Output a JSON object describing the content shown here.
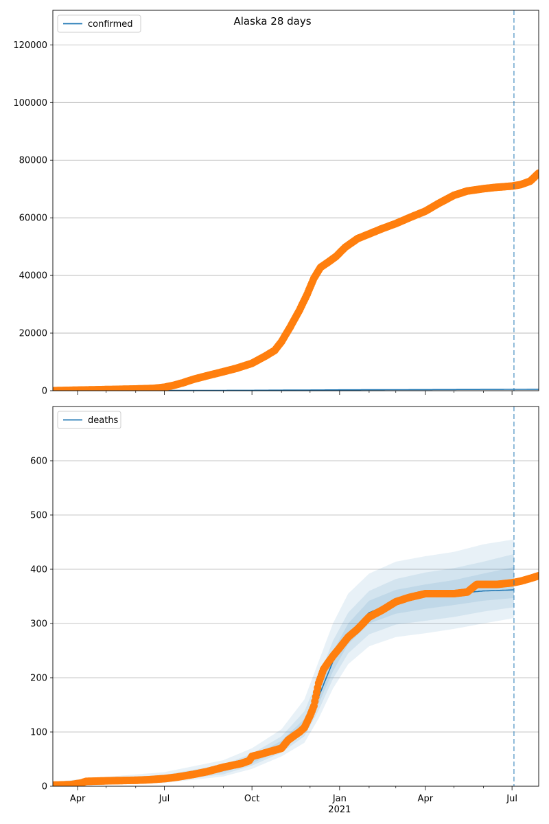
{
  "figure_title": "Alaska 28 days",
  "colors": {
    "model": "#1f77b4",
    "observed": "#ff7f0e",
    "band": "#1f77b4",
    "grid": "#b0b0b0",
    "forecast_line": "#1f77b4"
  },
  "x_axis": {
    "major_ticks": [
      {
        "date": "2020-04-01",
        "label": "Apr"
      },
      {
        "date": "2020-07-01",
        "label": "Jul"
      },
      {
        "date": "2020-10-01",
        "label": "Oct"
      },
      {
        "date": "2021-01-01",
        "label": "Jan"
      },
      {
        "date": "2021-04-01",
        "label": "Apr"
      },
      {
        "date": "2021-07-01",
        "label": "Jul"
      }
    ],
    "year_label": {
      "date": "2021-01-01",
      "label": "2021"
    },
    "minor_tick_dates": [
      "2020-05-01",
      "2020-06-01",
      "2020-08-01",
      "2020-09-01",
      "2020-11-01",
      "2020-12-01",
      "2021-02-01",
      "2021-03-01",
      "2021-05-01",
      "2021-06-01"
    ],
    "range": [
      "2020-03-06",
      "2021-07-29"
    ]
  },
  "forecast_date": "2021-07-03",
  "chart_data": [
    {
      "type": "line",
      "legend": "confirmed",
      "legend_position": "top-left",
      "ylim": [
        0,
        132000
      ],
      "yticks": [
        0,
        20000,
        40000,
        60000,
        80000,
        100000,
        120000
      ],
      "grid": "y",
      "model_series": {
        "name": "confirmed",
        "x": [
          "2020-03-06",
          "2020-10-01",
          "2021-01-01",
          "2021-07-29"
        ],
        "y": [
          0,
          150,
          300,
          500
        ]
      },
      "observed_series": {
        "x": [
          "2020-03-06",
          "2020-04-01",
          "2020-05-01",
          "2020-06-01",
          "2020-06-20",
          "2020-07-01",
          "2020-07-10",
          "2020-07-20",
          "2020-08-01",
          "2020-08-15",
          "2020-09-01",
          "2020-09-15",
          "2020-10-01",
          "2020-10-15",
          "2020-10-25",
          "2020-11-01",
          "2020-11-10",
          "2020-11-20",
          "2020-11-28",
          "2020-12-05",
          "2020-12-12",
          "2020-12-20",
          "2020-12-28",
          "2021-01-07",
          "2021-01-20",
          "2021-02-01",
          "2021-02-15",
          "2021-03-01",
          "2021-03-15",
          "2021-04-01",
          "2021-04-15",
          "2021-05-01",
          "2021-05-15",
          "2021-06-01",
          "2021-06-15",
          "2021-07-01",
          "2021-07-10",
          "2021-07-20",
          "2021-07-29"
        ],
        "y": [
          0,
          200,
          400,
          600,
          800,
          1200,
          1800,
          2700,
          4000,
          5200,
          6600,
          7800,
          9500,
          12000,
          14000,
          17000,
          22000,
          28000,
          33500,
          39000,
          42800,
          44600,
          46500,
          49800,
          52800,
          54400,
          56300,
          58000,
          60000,
          62300,
          65000,
          67800,
          69300,
          70100,
          70600,
          71000,
          71500,
          72700,
          75500
        ]
      }
    },
    {
      "type": "line",
      "legend": "deaths",
      "legend_position": "top-left",
      "ylim": [
        0,
        700
      ],
      "yticks": [
        0,
        100,
        200,
        300,
        400,
        500,
        600
      ],
      "grid": "y",
      "model_series": {
        "name": "deaths",
        "x": [
          "2020-03-06",
          "2020-04-15",
          "2020-07-01",
          "2020-09-01",
          "2020-10-01",
          "2020-11-01",
          "2020-11-25",
          "2020-12-10",
          "2020-12-25",
          "2021-01-10",
          "2021-02-01",
          "2021-03-01",
          "2021-04-01",
          "2021-05-01",
          "2021-06-01",
          "2021-07-03"
        ],
        "y": [
          3,
          8,
          14,
          30,
          48,
          75,
          110,
          165,
          230,
          280,
          320,
          340,
          350,
          355,
          360,
          362
        ]
      },
      "bands": [
        {
          "x": [
            "2020-03-06",
            "2020-04-15",
            "2020-07-01",
            "2020-09-01",
            "2020-10-01",
            "2020-11-01",
            "2020-11-25",
            "2020-12-10",
            "2020-12-25",
            "2021-01-10",
            "2021-02-01",
            "2021-03-01",
            "2021-04-01",
            "2021-05-01",
            "2021-06-01",
            "2021-07-03"
          ],
          "lower": [
            0,
            2,
            6,
            18,
            32,
            55,
            80,
            125,
            180,
            225,
            258,
            275,
            282,
            290,
            300,
            310
          ],
          "upper": [
            8,
            15,
            26,
            48,
            70,
            105,
            160,
            230,
            300,
            355,
            392,
            414,
            424,
            432,
            446,
            455
          ]
        },
        {
          "x": [
            "2020-03-06",
            "2020-04-15",
            "2020-07-01",
            "2020-09-01",
            "2020-10-01",
            "2020-11-01",
            "2020-11-25",
            "2020-12-10",
            "2020-12-25",
            "2021-01-10",
            "2021-02-01",
            "2021-03-01",
            "2021-04-01",
            "2021-05-01",
            "2021-06-01",
            "2021-07-03"
          ],
          "lower": [
            1,
            4,
            9,
            22,
            38,
            62,
            92,
            140,
            198,
            245,
            280,
            298,
            305,
            312,
            322,
            330
          ],
          "upper": [
            6,
            12,
            21,
            40,
            60,
            92,
            138,
            200,
            268,
            320,
            360,
            382,
            394,
            402,
            414,
            428
          ]
        },
        {
          "x": [
            "2020-03-06",
            "2020-04-15",
            "2020-07-01",
            "2020-09-01",
            "2020-10-01",
            "2020-11-01",
            "2020-11-25",
            "2020-12-10",
            "2020-12-25",
            "2021-01-10",
            "2021-02-01",
            "2021-03-01",
            "2021-04-01",
            "2021-05-01",
            "2021-06-01",
            "2021-07-03"
          ],
          "lower": [
            2,
            6,
            11,
            26,
            42,
            68,
            100,
            152,
            212,
            262,
            300,
            318,
            327,
            334,
            342,
            347
          ],
          "upper": [
            5,
            10,
            18,
            35,
            54,
            84,
            124,
            182,
            248,
            300,
            342,
            362,
            372,
            380,
            392,
            404
          ]
        }
      ],
      "observed_series": {
        "x": [
          "2020-03-06",
          "2020-03-25",
          "2020-04-05",
          "2020-04-10",
          "2020-05-01",
          "2020-06-01",
          "2020-06-15",
          "2020-07-01",
          "2020-07-15",
          "2020-08-01",
          "2020-08-15",
          "2020-09-01",
          "2020-09-20",
          "2020-09-28",
          "2020-10-01",
          "2020-10-10",
          "2020-10-20",
          "2020-11-01",
          "2020-11-08",
          "2020-11-15",
          "2020-11-20",
          "2020-11-25",
          "2020-12-01",
          "2020-12-05",
          "2020-12-10",
          "2020-12-15",
          "2020-12-20",
          "2020-12-25",
          "2021-01-01",
          "2021-01-10",
          "2021-01-20",
          "2021-02-01",
          "2021-02-15",
          "2021-03-01",
          "2021-03-15",
          "2021-04-01",
          "2021-04-15",
          "2021-05-01",
          "2021-05-15",
          "2021-05-25",
          "2021-06-15",
          "2021-07-01",
          "2021-07-10",
          "2021-07-20",
          "2021-07-29"
        ],
        "y": [
          2,
          3,
          6,
          9,
          10,
          11,
          12,
          14,
          17,
          22,
          27,
          35,
          42,
          47,
          55,
          59,
          64,
          70,
          85,
          94,
          100,
          108,
          130,
          148,
          190,
          215,
          228,
          240,
          255,
          275,
          290,
          312,
          325,
          340,
          348,
          355,
          355,
          355,
          358,
          372,
          372,
          375,
          378,
          383,
          388
        ]
      }
    }
  ]
}
